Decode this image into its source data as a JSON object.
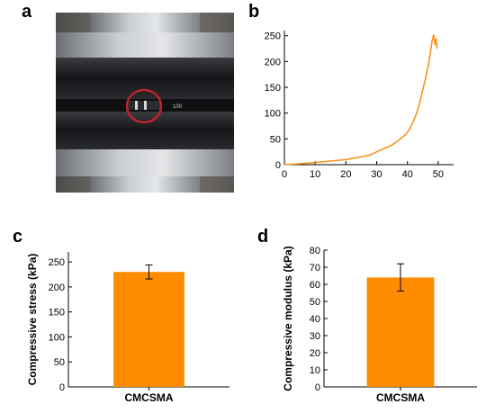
{
  "panels": {
    "a": {
      "label": "a"
    },
    "b": {
      "label": "b"
    },
    "c": {
      "label": "c"
    },
    "d": {
      "label": "d"
    }
  },
  "photo": {
    "description_icon": "compression-test-photo",
    "marker_text": "100",
    "colors": {
      "plate": "#b8bcc0",
      "sample": "#1e1f22",
      "circle": "#c0232b"
    }
  },
  "chart_data": [
    {
      "panel": "b",
      "type": "line",
      "title": "",
      "xlabel": "",
      "ylabel": "",
      "xlim": [
        0,
        55
      ],
      "ylim": [
        0,
        260
      ],
      "xticks": [
        0,
        10,
        20,
        30,
        40,
        50
      ],
      "yticks": [
        0,
        50,
        100,
        150,
        200,
        250
      ],
      "color": "#f7931e",
      "series": [
        {
          "x": [
            0,
            5,
            10,
            15,
            20,
            25,
            28,
            30,
            33,
            35,
            37,
            39,
            40,
            41,
            42,
            43,
            44,
            45,
            46,
            47,
            47.5,
            48,
            48.5,
            49,
            49.3,
            49.6
          ],
          "y": [
            0,
            2,
            4,
            7,
            10,
            15,
            19,
            25,
            33,
            38,
            47,
            56,
            63,
            72,
            85,
            100,
            120,
            145,
            170,
            200,
            220,
            240,
            252,
            232,
            245,
            225
          ]
        }
      ]
    },
    {
      "panel": "c",
      "type": "bar",
      "title": "",
      "xlabel": "",
      "ylabel": "Compressive stress (kPa)",
      "categories": [
        "CMCSMA"
      ],
      "values": [
        230
      ],
      "errors": [
        14
      ],
      "ylim": [
        0,
        270
      ],
      "yticks": [
        0,
        50,
        100,
        150,
        200,
        250
      ],
      "color": "#ff8c00"
    },
    {
      "panel": "d",
      "type": "bar",
      "title": "",
      "xlabel": "",
      "ylabel": "Compressive modulus (kPa)",
      "categories": [
        "CMCSMA"
      ],
      "values": [
        64
      ],
      "errors": [
        8
      ],
      "ylim": [
        0,
        80
      ],
      "yticks": [
        0,
        10,
        20,
        30,
        40,
        50,
        60,
        70,
        80
      ],
      "color": "#ff8c00"
    }
  ]
}
